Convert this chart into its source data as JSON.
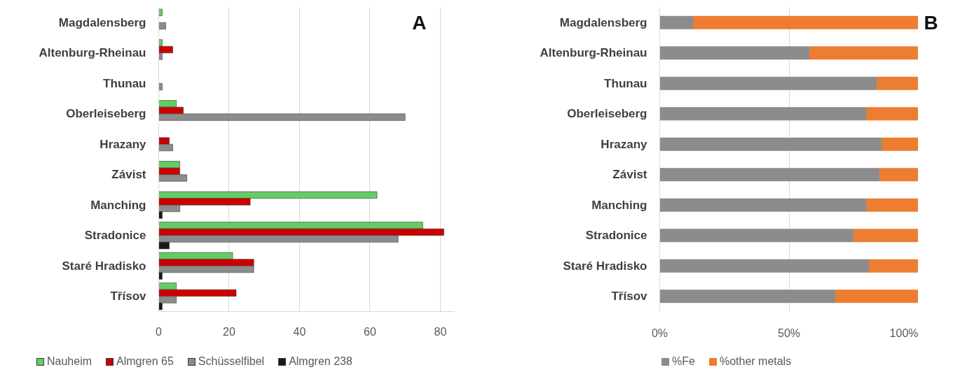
{
  "chart_data": [
    {
      "type": "bar",
      "orientation": "horizontal",
      "categories": [
        "Magdalensberg",
        "Altenburg-Rheinau",
        "Thunau",
        "Oberleiseberg",
        "Hrazany",
        "Závist",
        "Manching",
        "Stradonice",
        "Staré Hradisko",
        "Třísov"
      ],
      "series": [
        {
          "name": "Nauheim",
          "color": "#66cc66",
          "values": [
            1,
            1,
            null,
            5,
            null,
            6,
            62,
            75,
            21,
            5
          ]
        },
        {
          "name": "Almgren 65",
          "color": "#cc0000",
          "values": [
            null,
            4,
            null,
            7,
            3,
            6,
            26,
            81,
            27,
            22
          ]
        },
        {
          "name": "Schüsselfibel",
          "color": "#8c8c8c",
          "values": [
            2,
            1,
            1,
            70,
            4,
            8,
            6,
            68,
            27,
            5
          ]
        },
        {
          "name": "Almgren 238",
          "color": "#1a1a1a",
          "values": [
            null,
            null,
            null,
            null,
            null,
            null,
            1,
            3,
            1,
            1
          ]
        }
      ],
      "xlim": [
        0,
        84
      ],
      "xticks": [
        0,
        20,
        40,
        60,
        80
      ],
      "grid": "x",
      "legend": "bottom",
      "annotations": [
        "A"
      ]
    },
    {
      "type": "bar",
      "orientation": "horizontal",
      "stacked": true,
      "categories": [
        "Magdalensberg",
        "Altenburg-Rheinau",
        "Thunau",
        "Oberleiseberg",
        "Hrazany",
        "Závist",
        "Manching",
        "Stradonice",
        "Staré Hradisko",
        "Třísov"
      ],
      "series": [
        {
          "name": "%Fe",
          "color": "#8c8c8c",
          "values": [
            13,
            58,
            84,
            80,
            86,
            85,
            80,
            75,
            81,
            68
          ]
        },
        {
          "name": "%other metals",
          "color": "#ed7d31",
          "values": [
            87,
            42,
            16,
            20,
            14,
            15,
            20,
            25,
            19,
            32
          ]
        }
      ],
      "xlim": [
        0,
        100
      ],
      "xticks": [
        {
          "value": 0,
          "label": "0%"
        },
        {
          "value": 50,
          "label": "50%"
        },
        {
          "value": 100,
          "label": "100%"
        }
      ],
      "grid": "x",
      "legend": "bottom",
      "annotations": [
        "B"
      ]
    }
  ]
}
